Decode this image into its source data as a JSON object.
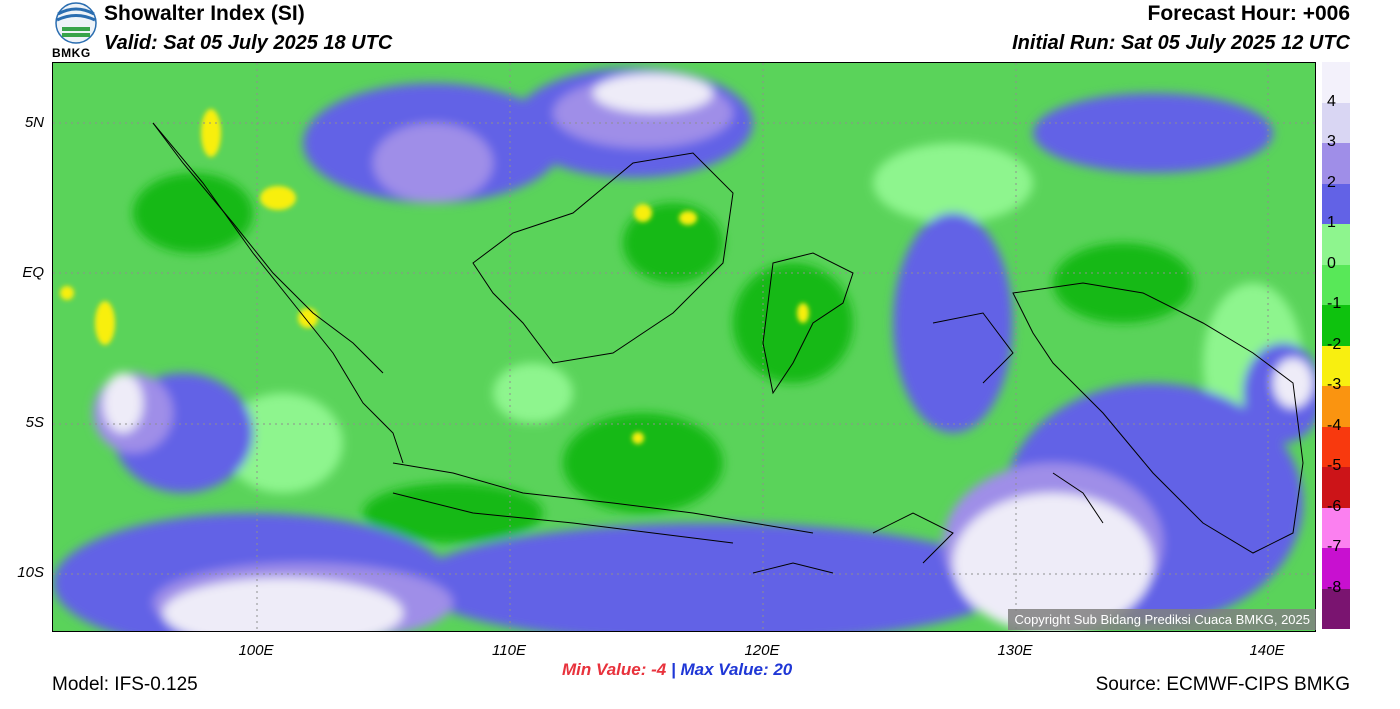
{
  "header": {
    "title": "Showalter Index (SI)",
    "valid": "Valid: Sat 05 July 2025 18 UTC",
    "forecast_hour": "Forecast Hour: +006",
    "initial_run": "Initial Run: Sat 05 July 2025 12 UTC",
    "logo_text": "BMKG"
  },
  "map": {
    "lat_labels": [
      "5N",
      "EQ",
      "5S",
      "10S"
    ],
    "lon_labels": [
      "100E",
      "110E",
      "120E",
      "130E",
      "140E"
    ],
    "copyright": "Copyright Sub Bidang Prediksi Cuaca BMKG, 2025"
  },
  "colorbar": {
    "labels": [
      "4",
      "3",
      "2",
      "1",
      "0",
      "-1",
      "-2",
      "-3",
      "-4",
      "-5",
      "-6",
      "-7",
      "-8"
    ],
    "colors": [
      "#f3f1fb",
      "#d9d6f3",
      "#9f8ee8",
      "#6262e6",
      "#8ef58e",
      "#58e858",
      "#0ec20e",
      "#f8ef10",
      "#fa9410",
      "#f8390e",
      "#cc1418",
      "#fb80f0",
      "#c810d0",
      "#7a1470"
    ]
  },
  "footer": {
    "min_label": "Min Value:  -4",
    "separator": "|",
    "max_label": "Max Value:  20",
    "model": "Model: IFS-0.125",
    "source": "Source: ECMWF-CIPS BMKG"
  }
}
